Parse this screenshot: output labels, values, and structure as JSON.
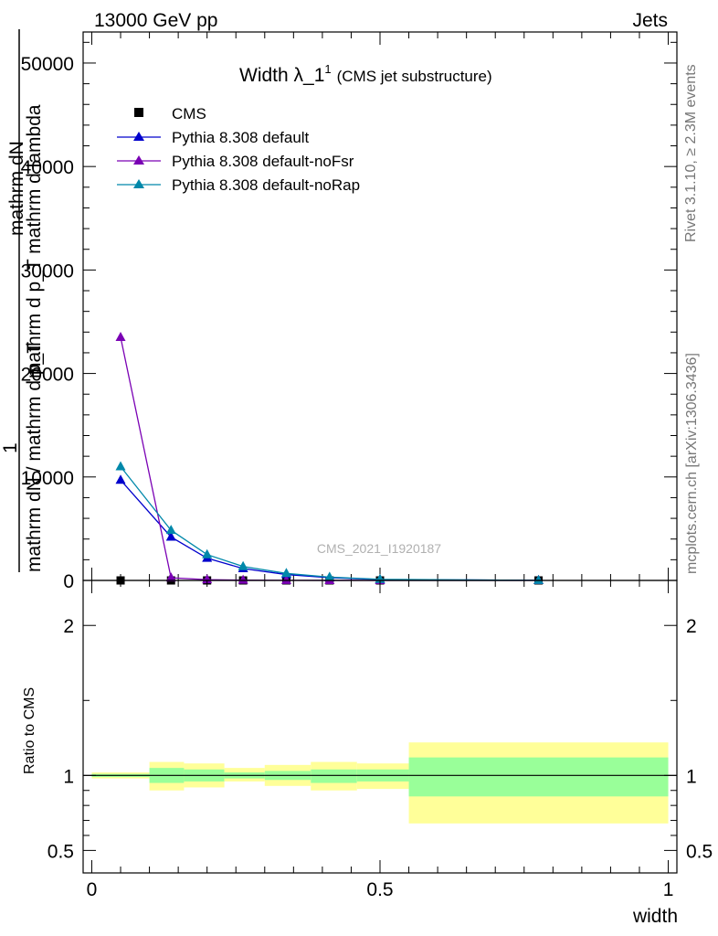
{
  "header": {
    "left": "13000 GeV pp",
    "right": "Jets"
  },
  "side": {
    "rivet": "Rivet 3.1.10, ≥ 2.3M events",
    "mcplots": "mcplots.cern.ch [arXiv:1306.3436]"
  },
  "watermark": "CMS_2021_I1920187",
  "chart_data": [
    {
      "type": "line",
      "title_main": "Width λ_1",
      "title_sup": "1",
      "title_sub": "(CMS jet substructure)",
      "ylabel_lines": [
        "mathrm dN",
        "mathrm d p_T mathrm d lambda",
        "1",
        "mathrm dN / mathrm d p_T"
      ],
      "ylim": [
        0,
        53000
      ],
      "xlim": [
        -0.015,
        1.015
      ],
      "yticks": [
        0,
        10000,
        20000,
        30000,
        40000,
        50000
      ],
      "ytick_labels": [
        "0",
        "10000",
        "20000",
        "30000",
        "40000",
        "50000"
      ],
      "legend_position": "top-left",
      "series": [
        {
          "name": "CMS",
          "color": "#000000",
          "marker": "square",
          "x": [
            0.05,
            0.1375,
            0.2,
            0.2625,
            0.3375,
            0.4125,
            0.5,
            0.775
          ],
          "values": [
            0,
            0,
            0,
            0,
            0,
            0,
            0,
            0
          ]
        },
        {
          "name": "Pythia 8.308 default",
          "color": "#0000cc",
          "marker": "triangle",
          "x": [
            0.05,
            0.1375,
            0.2,
            0.2625,
            0.3375,
            0.4125,
            0.5,
            0.775
          ],
          "values": [
            9700,
            4200,
            2150,
            1150,
            570,
            270,
            90,
            10
          ]
        },
        {
          "name": "Pythia 8.308 default-noFsr",
          "color": "#7a00b4",
          "marker": "triangle",
          "x": [
            0.05,
            0.1375,
            0.2,
            0.2625,
            0.3375,
            0.4125,
            0.5,
            0.775
          ],
          "values": [
            23500,
            250,
            80,
            30,
            10,
            5,
            2,
            0
          ]
        },
        {
          "name": "Pythia 8.308 default-noRap",
          "color": "#0088aa",
          "marker": "triangle",
          "x": [
            0.05,
            0.1375,
            0.2,
            0.2625,
            0.3375,
            0.4125,
            0.5,
            0.775
          ],
          "values": [
            11000,
            4850,
            2500,
            1350,
            680,
            320,
            110,
            12
          ]
        }
      ]
    },
    {
      "type": "area",
      "ylabel": "Ratio to CMS",
      "xlabel": "width",
      "ylim": [
        0.35,
        2.3
      ],
      "xlim": [
        -0.015,
        1.015
      ],
      "yticks": [
        0.5,
        1,
        2
      ],
      "ytick_labels": [
        "0.5",
        "1",
        "2"
      ],
      "xticks": [
        0,
        0.5,
        1
      ],
      "xtick_labels": [
        "0",
        "0.5",
        "1"
      ],
      "reference_line": 1,
      "bins": [
        {
          "x_lo": 0.0,
          "x_hi": 0.1,
          "stat_lo": 0.99,
          "stat_hi": 1.01,
          "tot_lo": 0.98,
          "tot_hi": 1.02
        },
        {
          "x_lo": 0.1,
          "x_hi": 0.16,
          "stat_lo": 0.95,
          "stat_hi": 1.05,
          "tot_lo": 0.9,
          "tot_hi": 1.09
        },
        {
          "x_lo": 0.16,
          "x_hi": 0.23,
          "stat_lo": 0.96,
          "stat_hi": 1.04,
          "tot_lo": 0.92,
          "tot_hi": 1.08
        },
        {
          "x_lo": 0.23,
          "x_hi": 0.3,
          "stat_lo": 0.98,
          "stat_hi": 1.02,
          "tot_lo": 0.96,
          "tot_hi": 1.05
        },
        {
          "x_lo": 0.3,
          "x_hi": 0.38,
          "stat_lo": 0.97,
          "stat_hi": 1.03,
          "tot_lo": 0.93,
          "tot_hi": 1.07
        },
        {
          "x_lo": 0.38,
          "x_hi": 0.46,
          "stat_lo": 0.95,
          "stat_hi": 1.04,
          "tot_lo": 0.9,
          "tot_hi": 1.09
        },
        {
          "x_lo": 0.46,
          "x_hi": 0.55,
          "stat_lo": 0.96,
          "stat_hi": 1.04,
          "tot_lo": 0.91,
          "tot_hi": 1.08
        },
        {
          "x_lo": 0.55,
          "x_hi": 1.0,
          "stat_lo": 0.86,
          "stat_hi": 1.12,
          "tot_lo": 0.68,
          "tot_hi": 1.22
        }
      ],
      "stat_color": "#99ff99",
      "tot_color": "#ffff99"
    }
  ]
}
